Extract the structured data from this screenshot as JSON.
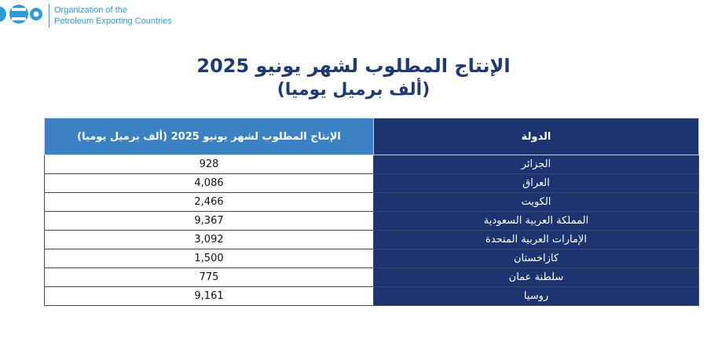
{
  "header": {
    "org_line1": "Organization of the",
    "org_line2": "Petroleum Exporting Countries",
    "logo_icon": "opec-logo-icon",
    "brand_color": "#2d9bd6"
  },
  "title": {
    "line1": "الإنتاج المطلوب لشهر يونيو 2025",
    "line2": "(ألف برميل يوميا)",
    "color": "#1e3a74"
  },
  "table": {
    "headers": {
      "value": "الإنتاج المطلوب لشهر يونيو 2025 (ألف برميل يوميا)",
      "country": "الدولة"
    },
    "colors": {
      "header_value_bg": "#3b82c4",
      "country_bg": "#1c3470"
    },
    "rows": [
      {
        "country": "الجزائر",
        "value": "928"
      },
      {
        "country": "العراق",
        "value": "4,086"
      },
      {
        "country": "الكويت",
        "value": "2,466"
      },
      {
        "country": "المملكة العربية السعودية",
        "value": "9,367"
      },
      {
        "country": "الإمارات العربية المتحدة",
        "value": "3,092"
      },
      {
        "country": "كازاخستان",
        "value": "1,500"
      },
      {
        "country": "سلطنة عمان",
        "value": "775"
      },
      {
        "country": "روسيا",
        "value": "9,161"
      }
    ]
  }
}
